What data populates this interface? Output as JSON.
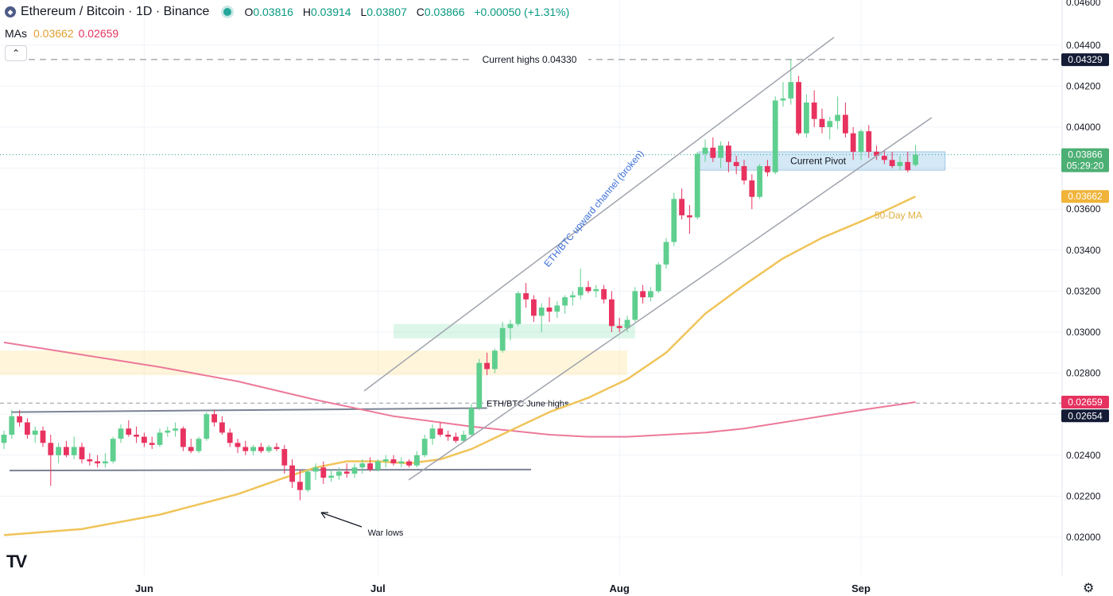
{
  "header": {
    "title": "Ethereum / Bitcoin · 1D · Binance",
    "o_label": "O",
    "o_value": "0.03816",
    "h_label": "H",
    "h_value": "0.03914",
    "l_label": "L",
    "l_value": "0.03807",
    "c_label": "C",
    "c_value": "0.03866",
    "change": "+0.00050 (+1.31%)"
  },
  "mas": {
    "label": "MAs",
    "ma1": "0.03662",
    "ma2": "0.02659"
  },
  "colors": {
    "up": "#5fcf8f",
    "down": "#e8325f",
    "ma50": "#f0c45a",
    "ma200": "#ec7a9a",
    "text": "#131722"
  },
  "price_labels": {
    "highs": "0.04329",
    "last": "0.03866",
    "countdown": "05:29:20",
    "ma50": "0.03662",
    "ma200": "0.02659",
    "june_high": "0.02654",
    "top_tick": "0.04600"
  },
  "icons": {
    "logo": "tradingview-logo",
    "settings": "gear-icon",
    "collapse": "chevron-up-icon"
  },
  "chart_data": {
    "type": "candlestick",
    "title": "Ethereum / Bitcoin · 1D · Binance",
    "ylim": [
      0.0195,
      0.046
    ],
    "y_ticks": [
      "0.02000",
      "0.02200",
      "0.02400",
      "0.02600",
      "0.02800",
      "0.03000",
      "0.03200",
      "0.03400",
      "0.03600",
      "0.03800",
      "0.04000",
      "0.04200",
      "0.04400"
    ],
    "x_ticks": [
      {
        "label": "Jun",
        "index": 18
      },
      {
        "label": "Jul",
        "index": 48
      },
      {
        "label": "Aug",
        "index": 79
      },
      {
        "label": "Sep",
        "index": 110
      }
    ],
    "candles": [
      [
        0.0246,
        0.0252,
        0.0243,
        0.025
      ],
      [
        0.025,
        0.0262,
        0.0248,
        0.0259
      ],
      [
        0.0259,
        0.0262,
        0.0254,
        0.0256
      ],
      [
        0.0256,
        0.0258,
        0.0248,
        0.025
      ],
      [
        0.025,
        0.0254,
        0.0246,
        0.0252
      ],
      [
        0.0252,
        0.0254,
        0.0244,
        0.0246
      ],
      [
        0.0246,
        0.025,
        0.0225,
        0.024
      ],
      [
        0.024,
        0.0246,
        0.0236,
        0.0244
      ],
      [
        0.0244,
        0.0247,
        0.0239,
        0.024
      ],
      [
        0.024,
        0.0249,
        0.0238,
        0.0244
      ],
      [
        0.0244,
        0.0246,
        0.0236,
        0.0238
      ],
      [
        0.0238,
        0.0241,
        0.0235,
        0.0237
      ],
      [
        0.0237,
        0.024,
        0.0234,
        0.0236
      ],
      [
        0.0236,
        0.0241,
        0.0234,
        0.0237
      ],
      [
        0.0237,
        0.0249,
        0.0236,
        0.0248
      ],
      [
        0.0248,
        0.0255,
        0.0246,
        0.0253
      ],
      [
        0.0253,
        0.0257,
        0.0249,
        0.025
      ],
      [
        0.025,
        0.0254,
        0.0246,
        0.0249
      ],
      [
        0.0249,
        0.0251,
        0.0244,
        0.0246
      ],
      [
        0.0246,
        0.0249,
        0.0243,
        0.0245
      ],
      [
        0.0245,
        0.0253,
        0.0244,
        0.0251
      ],
      [
        0.0251,
        0.0254,
        0.0249,
        0.0252
      ],
      [
        0.0252,
        0.0256,
        0.0249,
        0.0253
      ],
      [
        0.0253,
        0.0254,
        0.0242,
        0.0244
      ],
      [
        0.0244,
        0.0248,
        0.0241,
        0.0242
      ],
      [
        0.0242,
        0.0249,
        0.0241,
        0.0248
      ],
      [
        0.0248,
        0.0261,
        0.0247,
        0.026
      ],
      [
        0.026,
        0.0262,
        0.0254,
        0.0256
      ],
      [
        0.0256,
        0.0259,
        0.025,
        0.0251
      ],
      [
        0.0251,
        0.0253,
        0.0244,
        0.0246
      ],
      [
        0.0246,
        0.0248,
        0.0241,
        0.0244
      ],
      [
        0.0244,
        0.0247,
        0.024,
        0.0242
      ],
      [
        0.0242,
        0.0245,
        0.024,
        0.0244
      ],
      [
        0.0244,
        0.0246,
        0.0241,
        0.0242
      ],
      [
        0.0242,
        0.0245,
        0.0241,
        0.0244
      ],
      [
        0.0244,
        0.0246,
        0.0242,
        0.0243
      ],
      [
        0.0243,
        0.0245,
        0.0231,
        0.0235
      ],
      [
        0.0235,
        0.0238,
        0.0224,
        0.0227
      ],
      [
        0.0227,
        0.0233,
        0.0218,
        0.0223
      ],
      [
        0.0223,
        0.0233,
        0.0222,
        0.0232
      ],
      [
        0.0232,
        0.0236,
        0.0228,
        0.0234
      ],
      [
        0.0234,
        0.0237,
        0.0226,
        0.0229
      ],
      [
        0.0229,
        0.0233,
        0.0227,
        0.023
      ],
      [
        0.023,
        0.0234,
        0.0228,
        0.0232
      ],
      [
        0.0232,
        0.0236,
        0.0229,
        0.0231
      ],
      [
        0.0231,
        0.0236,
        0.0229,
        0.0234
      ],
      [
        0.0234,
        0.0238,
        0.0231,
        0.0236
      ],
      [
        0.0236,
        0.0239,
        0.0232,
        0.0233
      ],
      [
        0.0233,
        0.0238,
        0.0232,
        0.0237
      ],
      [
        0.0237,
        0.024,
        0.0234,
        0.0238
      ],
      [
        0.0238,
        0.024,
        0.0235,
        0.0236
      ],
      [
        0.0236,
        0.0239,
        0.0234,
        0.0237
      ],
      [
        0.0237,
        0.0238,
        0.0234,
        0.0235
      ],
      [
        0.0235,
        0.0242,
        0.0234,
        0.024
      ],
      [
        0.024,
        0.025,
        0.0239,
        0.0248
      ],
      [
        0.0248,
        0.0255,
        0.0245,
        0.0253
      ],
      [
        0.0253,
        0.0256,
        0.0249,
        0.025
      ],
      [
        0.025,
        0.0252,
        0.0247,
        0.0249
      ],
      [
        0.0249,
        0.0251,
        0.0246,
        0.0247
      ],
      [
        0.0247,
        0.0252,
        0.0246,
        0.025
      ],
      [
        0.025,
        0.0265,
        0.0249,
        0.0263
      ],
      [
        0.0263,
        0.0287,
        0.0262,
        0.0285
      ],
      [
        0.0285,
        0.029,
        0.0279,
        0.0282
      ],
      [
        0.0282,
        0.0292,
        0.028,
        0.0291
      ],
      [
        0.0291,
        0.0305,
        0.029,
        0.0302
      ],
      [
        0.0302,
        0.0306,
        0.0296,
        0.0304
      ],
      [
        0.0304,
        0.032,
        0.0303,
        0.0319
      ],
      [
        0.0319,
        0.0324,
        0.0312,
        0.0316
      ],
      [
        0.0316,
        0.0318,
        0.0305,
        0.0308
      ],
      [
        0.0308,
        0.0314,
        0.03,
        0.0312
      ],
      [
        0.0312,
        0.0317,
        0.0305,
        0.031
      ],
      [
        0.031,
        0.0315,
        0.0307,
        0.0313
      ],
      [
        0.0313,
        0.0318,
        0.0309,
        0.0317
      ],
      [
        0.0317,
        0.032,
        0.0313,
        0.0318
      ],
      [
        0.0318,
        0.0331,
        0.0316,
        0.0322
      ],
      [
        0.0322,
        0.0325,
        0.0319,
        0.032
      ],
      [
        0.032,
        0.0323,
        0.0317,
        0.0321
      ],
      [
        0.0321,
        0.0323,
        0.0314,
        0.0316
      ],
      [
        0.0316,
        0.032,
        0.03,
        0.0303
      ],
      [
        0.0303,
        0.0307,
        0.03,
        0.0302
      ],
      [
        0.0302,
        0.0308,
        0.03,
        0.0306
      ],
      [
        0.0306,
        0.0322,
        0.0305,
        0.032
      ],
      [
        0.032,
        0.0323,
        0.0314,
        0.0317
      ],
      [
        0.0317,
        0.0322,
        0.0315,
        0.032
      ],
      [
        0.032,
        0.0334,
        0.0319,
        0.0333
      ],
      [
        0.0333,
        0.0346,
        0.0331,
        0.0344
      ],
      [
        0.0344,
        0.0368,
        0.0342,
        0.0365
      ],
      [
        0.0365,
        0.037,
        0.0355,
        0.0357
      ],
      [
        0.0357,
        0.0362,
        0.0348,
        0.0356
      ],
      [
        0.0356,
        0.0388,
        0.0355,
        0.0387
      ],
      [
        0.0387,
        0.0394,
        0.0383,
        0.039
      ],
      [
        0.039,
        0.0395,
        0.0383,
        0.0385
      ],
      [
        0.0385,
        0.0393,
        0.038,
        0.0391
      ],
      [
        0.0391,
        0.0393,
        0.0378,
        0.0383
      ],
      [
        0.0383,
        0.0386,
        0.0377,
        0.0381
      ],
      [
        0.0381,
        0.0384,
        0.0372,
        0.0374
      ],
      [
        0.0374,
        0.0377,
        0.036,
        0.0366
      ],
      [
        0.0366,
        0.0382,
        0.0365,
        0.0381
      ],
      [
        0.0381,
        0.0384,
        0.0376,
        0.0378
      ],
      [
        0.0378,
        0.0415,
        0.0377,
        0.0413
      ],
      [
        0.0413,
        0.0422,
        0.041,
        0.0414
      ],
      [
        0.0414,
        0.0433,
        0.0411,
        0.0422
      ],
      [
        0.0422,
        0.0425,
        0.0396,
        0.0397
      ],
      [
        0.0397,
        0.0416,
        0.0395,
        0.0412
      ],
      [
        0.0412,
        0.0418,
        0.04,
        0.0404
      ],
      [
        0.0404,
        0.0409,
        0.0397,
        0.04
      ],
      [
        0.04,
        0.0405,
        0.0394,
        0.0403
      ],
      [
        0.0403,
        0.0415,
        0.0399,
        0.0406
      ],
      [
        0.0406,
        0.0412,
        0.0395,
        0.0397
      ],
      [
        0.0397,
        0.04,
        0.0384,
        0.0388
      ],
      [
        0.0388,
        0.0399,
        0.0384,
        0.0398
      ],
      [
        0.0398,
        0.0401,
        0.0385,
        0.0388
      ],
      [
        0.0388,
        0.0391,
        0.0384,
        0.0386
      ],
      [
        0.0386,
        0.0389,
        0.0382,
        0.0384
      ],
      [
        0.0384,
        0.0388,
        0.038,
        0.0381
      ],
      [
        0.0381,
        0.0386,
        0.0379,
        0.0383
      ],
      [
        0.0383,
        0.0388,
        0.0378,
        0.0379
      ],
      [
        0.03816,
        0.03914,
        0.03807,
        0.03866
      ]
    ],
    "ma50": {
      "name": "50-Day MA",
      "x": [
        0,
        10,
        20,
        30,
        36,
        40,
        44,
        48,
        52,
        56,
        60,
        65,
        70,
        75,
        80,
        85,
        90,
        95,
        100,
        105,
        110,
        113,
        117
      ],
      "y": [
        0.0201,
        0.0204,
        0.0211,
        0.0221,
        0.0229,
        0.0234,
        0.0237,
        0.0237,
        0.0236,
        0.0238,
        0.0243,
        0.0252,
        0.0261,
        0.0268,
        0.0277,
        0.029,
        0.0309,
        0.0323,
        0.0336,
        0.0346,
        0.0354,
        0.0359,
        0.03662
      ]
    },
    "ma200": {
      "x": [
        0,
        10,
        20,
        30,
        40,
        50,
        60,
        70,
        75,
        80,
        85,
        90,
        95,
        100,
        105,
        110,
        117
      ],
      "y": [
        0.0295,
        0.0289,
        0.0283,
        0.0276,
        0.0267,
        0.0259,
        0.0254,
        0.025,
        0.0249,
        0.0249,
        0.025,
        0.0251,
        0.0253,
        0.0256,
        0.0259,
        0.0262,
        0.02659
      ]
    },
    "annotations": {
      "current_highs": {
        "text": "Current highs 0.04330",
        "value": 0.0433
      },
      "current_pivot": {
        "text": "Current Pivot",
        "low": 0.0379,
        "high": 0.0388
      },
      "june_highs": {
        "text": "ETH/BTC June highs",
        "value": 0.02654
      },
      "channel_label": "ETH/BTC upward channel (broken)",
      "war_lows": "War lows",
      "ma50_label": "50-Day MA"
    },
    "zones": [
      {
        "name": "resistance-zone",
        "x0": -2,
        "x1": 80,
        "low": 0.0279,
        "high": 0.0291
      },
      {
        "name": "support-zone",
        "x0": 50,
        "x1": 81,
        "low": 0.0297,
        "high": 0.0304
      }
    ]
  }
}
